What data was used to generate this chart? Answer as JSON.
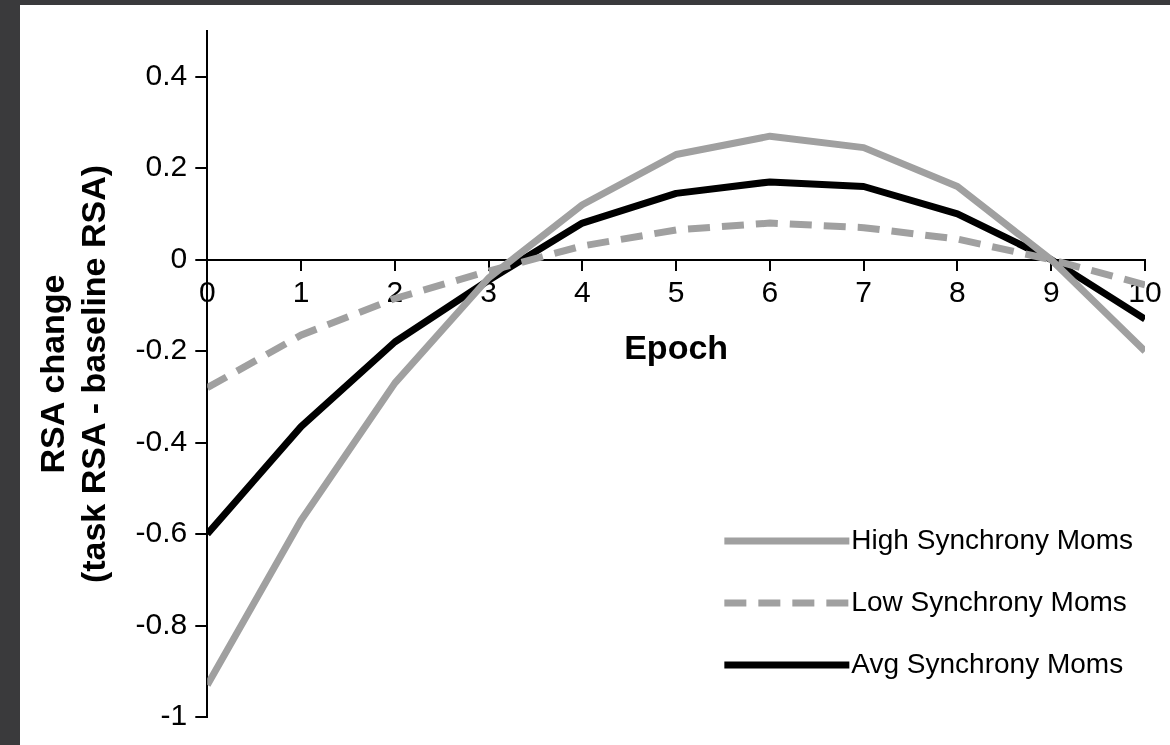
{
  "chart_data": {
    "type": "line",
    "xlabel": "Epoch",
    "ylabel": "RSA change\n(task RSA - baseline RSA)",
    "x": [
      0,
      1,
      2,
      3,
      4,
      5,
      6,
      7,
      8,
      9,
      10
    ],
    "xlim": [
      0,
      10
    ],
    "xticks": [
      0,
      1,
      2,
      3,
      4,
      5,
      6,
      7,
      8,
      9,
      10
    ],
    "ylim": [
      -1,
      0.5
    ],
    "yticks": [
      -1,
      -0.8,
      -0.6,
      -0.4,
      -0.2,
      0,
      0.2,
      0.4
    ],
    "grid": false,
    "legend": "bottom right",
    "marker": "none",
    "series": [
      {
        "name": "High Synchrony Moms",
        "color": "#a0a0a0",
        "line_style": "solid",
        "values": [
          -0.93,
          -0.57,
          -0.27,
          -0.04,
          0.12,
          0.23,
          0.27,
          0.245,
          0.16,
          0,
          -0.2
        ]
      },
      {
        "name": "Low Synchrony Moms",
        "color": "#a0a0a0",
        "line_style": "dashed",
        "values": [
          -0.28,
          -0.165,
          -0.085,
          -0.025,
          0.03,
          0.065,
          0.08,
          0.07,
          0.045,
          0,
          -0.055
        ]
      },
      {
        "name": "Avg Synchrony Moms",
        "color": "#000000",
        "line_style": "solid",
        "values": [
          -0.6,
          -0.365,
          -0.18,
          -0.045,
          0.08,
          0.145,
          0.17,
          0.16,
          0.1,
          0,
          -0.13
        ]
      }
    ]
  }
}
